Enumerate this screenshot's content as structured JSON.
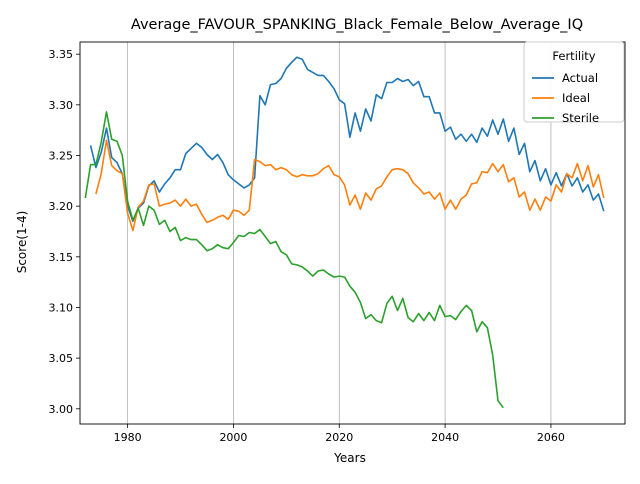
{
  "chart_data": {
    "type": "line",
    "title": "Average_FAVOUR_SPANKING_Black_Female_Below_Average_IQ",
    "xlabel": "Years",
    "ylabel": "Score(1-4)",
    "xlim": [
      1971,
      2074
    ],
    "ylim": [
      2.985,
      3.362
    ],
    "xticks": [
      1980,
      2000,
      2020,
      2040,
      2060
    ],
    "yticks": [
      3.0,
      3.05,
      3.1,
      3.15,
      3.2,
      3.25,
      3.3,
      3.35
    ],
    "ytick_labels": [
      "3.00",
      "3.05",
      "3.10",
      "3.15",
      "3.20",
      "3.25",
      "3.30",
      "3.35"
    ],
    "grid": "x-only",
    "legend": {
      "title": "Fertility",
      "placement": "top-right"
    },
    "series": [
      {
        "name": "Actual",
        "color": "#1f77b4",
        "x": [
          1973,
          1974,
          1975,
          1976,
          1977,
          1978,
          1979,
          1980,
          1981,
          1982,
          1983,
          1984,
          1985,
          1986,
          1987,
          1988,
          1989,
          1990,
          1991,
          1992,
          1993,
          1994,
          1995,
          1996,
          1997,
          1998,
          1999,
          2000,
          2001,
          2002,
          2003,
          2004,
          2005,
          2006,
          2007,
          2008,
          2009,
          2010,
          2011,
          2012,
          2013,
          2014,
          2015,
          2016,
          2017,
          2018,
          2019,
          2020,
          2021,
          2022,
          2023,
          2024,
          2025,
          2026,
          2027,
          2028,
          2029,
          2030,
          2031,
          2032,
          2033,
          2034,
          2035,
          2036,
          2037,
          2038,
          2039,
          2040,
          2041,
          2042,
          2043,
          2044,
          2045,
          2046,
          2047,
          2048,
          2049,
          2050,
          2051,
          2052,
          2053,
          2054,
          2055,
          2056,
          2057,
          2058,
          2059,
          2060,
          2061,
          2062,
          2063,
          2064,
          2065,
          2066,
          2067,
          2068,
          2069,
          2070
        ],
        "values": [
          3.26,
          3.238,
          3.253,
          3.277,
          3.248,
          3.243,
          3.232,
          3.2,
          3.185,
          3.198,
          3.203,
          3.22,
          3.225,
          3.214,
          3.222,
          3.228,
          3.236,
          3.236,
          3.252,
          3.257,
          3.262,
          3.258,
          3.251,
          3.246,
          3.251,
          3.243,
          3.231,
          3.226,
          3.222,
          3.218,
          3.221,
          3.228,
          3.309,
          3.3,
          3.32,
          3.321,
          3.326,
          3.336,
          3.342,
          3.347,
          3.345,
          3.335,
          3.332,
          3.329,
          3.329,
          3.323,
          3.316,
          3.305,
          3.301,
          3.268,
          3.292,
          3.274,
          3.296,
          3.284,
          3.31,
          3.306,
          3.322,
          3.322,
          3.326,
          3.323,
          3.325,
          3.319,
          3.323,
          3.308,
          3.308,
          3.292,
          3.292,
          3.274,
          3.278,
          3.266,
          3.271,
          3.264,
          3.271,
          3.263,
          3.277,
          3.269,
          3.285,
          3.271,
          3.286,
          3.264,
          3.277,
          3.251,
          3.262,
          3.234,
          3.245,
          3.225,
          3.237,
          3.221,
          3.233,
          3.22,
          3.232,
          3.22,
          3.228,
          3.214,
          3.221,
          3.206,
          3.212,
          3.195
        ]
      },
      {
        "name": "Ideal",
        "color": "#ff7f0e",
        "x": [
          1974,
          1975,
          1976,
          1977,
          1978,
          1979,
          1980,
          1981,
          1982,
          1983,
          1984,
          1985,
          1986,
          1987,
          1988,
          1989,
          1990,
          1991,
          1992,
          1993,
          1994,
          1995,
          1996,
          1997,
          1998,
          1999,
          2000,
          2001,
          2002,
          2003,
          2004,
          2005,
          2006,
          2007,
          2008,
          2009,
          2010,
          2011,
          2012,
          2013,
          2014,
          2015,
          2016,
          2017,
          2018,
          2019,
          2020,
          2021,
          2022,
          2023,
          2024,
          2025,
          2026,
          2027,
          2028,
          2029,
          2030,
          2031,
          2032,
          2033,
          2034,
          2035,
          2036,
          2037,
          2038,
          2039,
          2040,
          2041,
          2042,
          2043,
          2044,
          2045,
          2046,
          2047,
          2048,
          2049,
          2050,
          2051,
          2052,
          2053,
          2054,
          2055,
          2056,
          2057,
          2058,
          2059,
          2060,
          2061,
          2062,
          2063,
          2064,
          2065,
          2066,
          2067,
          2068,
          2069,
          2070
        ],
        "values": [
          3.212,
          3.232,
          3.265,
          3.24,
          3.235,
          3.232,
          3.193,
          3.176,
          3.199,
          3.205,
          3.221,
          3.222,
          3.2,
          3.202,
          3.203,
          3.206,
          3.2,
          3.207,
          3.2,
          3.202,
          3.192,
          3.184,
          3.186,
          3.189,
          3.191,
          3.187,
          3.196,
          3.195,
          3.191,
          3.196,
          3.246,
          3.244,
          3.24,
          3.241,
          3.236,
          3.238,
          3.236,
          3.231,
          3.229,
          3.231,
          3.23,
          3.23,
          3.232,
          3.237,
          3.24,
          3.231,
          3.229,
          3.221,
          3.201,
          3.211,
          3.197,
          3.213,
          3.206,
          3.217,
          3.22,
          3.229,
          3.236,
          3.237,
          3.236,
          3.232,
          3.223,
          3.218,
          3.212,
          3.214,
          3.207,
          3.213,
          3.197,
          3.206,
          3.197,
          3.207,
          3.211,
          3.222,
          3.223,
          3.234,
          3.233,
          3.242,
          3.234,
          3.241,
          3.224,
          3.228,
          3.209,
          3.214,
          3.196,
          3.207,
          3.196,
          3.209,
          3.205,
          3.221,
          3.214,
          3.232,
          3.228,
          3.242,
          3.225,
          3.24,
          3.219,
          3.231,
          3.208
        ]
      },
      {
        "name": "Sterile",
        "color": "#2ca02c",
        "x": [
          1972,
          1973,
          1974,
          1975,
          1976,
          1977,
          1978,
          1979,
          1980,
          1981,
          1982,
          1983,
          1984,
          1985,
          1986,
          1987,
          1988,
          1989,
          1990,
          1991,
          1992,
          1993,
          1994,
          1995,
          1996,
          1997,
          1998,
          1999,
          2000,
          2001,
          2002,
          2003,
          2004,
          2005,
          2006,
          2007,
          2008,
          2009,
          2010,
          2011,
          2012,
          2013,
          2014,
          2015,
          2016,
          2017,
          2018,
          2019,
          2020,
          2021,
          2022,
          2023,
          2024,
          2025,
          2026,
          2027,
          2028,
          2029,
          2030,
          2031,
          2032,
          2033,
          2034,
          2035,
          2036,
          2037,
          2038,
          2039,
          2040,
          2041,
          2042,
          2043,
          2044,
          2045,
          2046,
          2047,
          2048,
          2049,
          2050,
          2051
        ],
        "values": [
          3.208,
          3.241,
          3.241,
          3.263,
          3.293,
          3.266,
          3.264,
          3.25,
          3.205,
          3.186,
          3.198,
          3.181,
          3.2,
          3.196,
          3.182,
          3.186,
          3.175,
          3.179,
          3.166,
          3.169,
          3.167,
          3.167,
          3.162,
          3.156,
          3.158,
          3.162,
          3.159,
          3.158,
          3.164,
          3.171,
          3.17,
          3.174,
          3.173,
          3.177,
          3.17,
          3.163,
          3.165,
          3.155,
          3.152,
          3.143,
          3.142,
          3.14,
          3.136,
          3.131,
          3.136,
          3.137,
          3.133,
          3.13,
          3.131,
          3.13,
          3.121,
          3.115,
          3.105,
          3.089,
          3.093,
          3.087,
          3.085,
          3.104,
          3.111,
          3.097,
          3.109,
          3.09,
          3.086,
          3.094,
          3.087,
          3.095,
          3.087,
          3.102,
          3.091,
          3.092,
          3.088,
          3.096,
          3.102,
          3.097,
          3.076,
          3.086,
          3.08,
          3.053,
          3.008,
          3.001
        ]
      }
    ]
  }
}
